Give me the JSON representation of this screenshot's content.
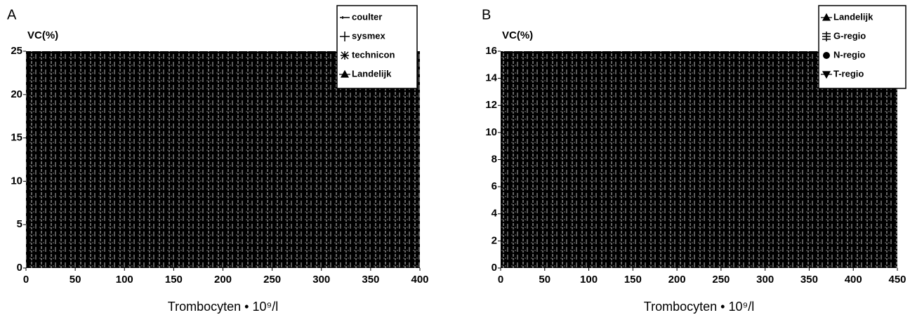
{
  "chart_data": [
    {
      "type": "line",
      "label": "A",
      "ylabel": "VC(%)",
      "xlabel": "Trombocyten • 10⁹/l",
      "xlim": [
        0,
        400
      ],
      "xticks": [
        0,
        50,
        100,
        150,
        200,
        250,
        300,
        350,
        400
      ],
      "ylim": [
        0,
        25
      ],
      "yticks": [
        0,
        5,
        10,
        15,
        20,
        25
      ],
      "legend": "upper right",
      "series": [
        {
          "name": "coulter",
          "marker": "dash"
        },
        {
          "name": "sysmex",
          "marker": "plus"
        },
        {
          "name": "technicon",
          "marker": "star"
        },
        {
          "name": "Landelijk",
          "marker": "triangle-up"
        }
      ]
    },
    {
      "type": "line",
      "label": "B",
      "ylabel": "VC(%)",
      "xlabel": "Trombocyten • 10⁹/l",
      "xlim": [
        0,
        450
      ],
      "xticks": [
        0,
        50,
        100,
        150,
        200,
        250,
        300,
        350,
        400,
        450
      ],
      "ylim": [
        0,
        16
      ],
      "yticks": [
        0,
        2,
        4,
        6,
        8,
        10,
        12,
        14,
        16
      ],
      "legend": "upper right",
      "series": [
        {
          "name": "Landelijk",
          "marker": "triangle-up"
        },
        {
          "name": "G-regio",
          "marker": "plus-bar"
        },
        {
          "name": "N-regio",
          "marker": "circle"
        },
        {
          "name": "T-regio",
          "marker": "triangle-down"
        }
      ]
    }
  ]
}
